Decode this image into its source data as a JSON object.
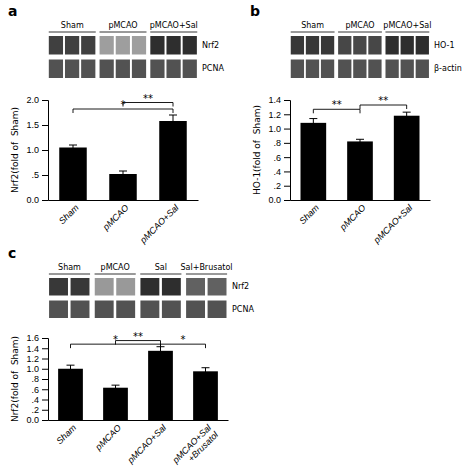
{
  "chart_data": [
    {
      "type": "bar",
      "title": "a",
      "categories": [
        "Sham",
        "pMCAO",
        "pMCAO+Sal"
      ],
      "values": [
        1.05,
        0.52,
        1.58
      ],
      "errors": [
        0.05,
        0.06,
        0.12
      ],
      "color": "#000000",
      "ylabel": "Nrf2(fold of  Sham)",
      "ylim": [
        0,
        2.0
      ],
      "yticks": [
        {
          "value": 0.0,
          "label": "0.0"
        },
        {
          "value": 0.5,
          "label": ".5"
        },
        {
          "value": 1.0,
          "label": "1.0"
        },
        {
          "value": 1.5,
          "label": "1.5"
        },
        {
          "value": 2.0,
          "label": "2.0"
        }
      ],
      "annotations": [
        {
          "x1": 0,
          "x2": 2,
          "y": 1.82,
          "label": "*"
        },
        {
          "x1": 1,
          "x2": 2,
          "y": 1.95,
          "label": "**"
        }
      ],
      "blot": {
        "groups": [
          "Sham",
          "pMCAO",
          "pMCAO+Sal"
        ],
        "lanes": [
          3,
          3,
          3
        ],
        "rows": [
          {
            "label": "Nrf2",
            "values": [
              0.75,
              0.75,
              0.75,
              0.38,
              0.38,
              0.38,
              0.82,
              0.82,
              0.82
            ]
          },
          {
            "label": "PCNA",
            "values": [
              0.68,
              0.68,
              0.68,
              0.68,
              0.68,
              0.68,
              0.68,
              0.68,
              0.68
            ]
          }
        ]
      }
    },
    {
      "type": "bar",
      "title": "b",
      "categories": [
        "Sham",
        "pMCAO",
        "pMCAO+Sal"
      ],
      "values": [
        1.08,
        0.82,
        1.18
      ],
      "errors": [
        0.06,
        0.03,
        0.05
      ],
      "color": "#000000",
      "ylabel": "HO-1(fold of  Sham)",
      "ylim": [
        0,
        1.4
      ],
      "yticks": [
        {
          "value": 0.0,
          "label": "0.0"
        },
        {
          "value": 0.2,
          "label": ".2"
        },
        {
          "value": 0.4,
          "label": ".4"
        },
        {
          "value": 0.6,
          "label": ".6"
        },
        {
          "value": 0.8,
          "label": ".8"
        },
        {
          "value": 1.0,
          "label": "1.0"
        },
        {
          "value": 1.2,
          "label": "1.2"
        },
        {
          "value": 1.4,
          "label": "1.4"
        }
      ],
      "annotations": [
        {
          "x1": 0,
          "x2": 1,
          "y": 1.27,
          "label": "**"
        },
        {
          "x1": 1,
          "x2": 2,
          "y": 1.33,
          "label": "**"
        }
      ],
      "blot": {
        "groups": [
          "Sham",
          "pMCAO",
          "pMCAO+Sal"
        ],
        "lanes": [
          3,
          3,
          3
        ],
        "rows": [
          {
            "label": "HO-1",
            "values": [
              0.78,
              0.78,
              0.78,
              0.72,
              0.72,
              0.72,
              0.82,
              0.82,
              0.82
            ]
          },
          {
            "label": "β-actin",
            "values": [
              0.68,
              0.68,
              0.68,
              0.68,
              0.68,
              0.68,
              0.68,
              0.68,
              0.68
            ]
          }
        ]
      }
    },
    {
      "type": "bar",
      "title": "c",
      "categories": [
        "Sham",
        "pMCAO",
        "pMCAO+Sal",
        "pMCAO+Sal\n+Brusatol"
      ],
      "values": [
        1.0,
        0.63,
        1.35,
        0.95
      ],
      "errors": [
        0.07,
        0.05,
        0.08,
        0.07
      ],
      "color": "#000000",
      "ylabel": "Nrf2(fold of  Sham)",
      "ylim": [
        0,
        1.6
      ],
      "yticks": [
        {
          "value": 0.0,
          "label": "0.0"
        },
        {
          "value": 0.2,
          "label": ".2"
        },
        {
          "value": 0.4,
          "label": ".4"
        },
        {
          "value": 0.6,
          "label": ".6"
        },
        {
          "value": 0.8,
          "label": ".8"
        },
        {
          "value": 1.0,
          "label": "1.0"
        },
        {
          "value": 1.2,
          "label": "1.2"
        },
        {
          "value": 1.4,
          "label": "1.4"
        },
        {
          "value": 1.6,
          "label": "1.6"
        }
      ],
      "annotations": [
        {
          "x1": 0,
          "x2": 2,
          "y": 1.48,
          "label": "*"
        },
        {
          "x1": 1,
          "x2": 2,
          "y": 1.55,
          "label": "**"
        },
        {
          "x1": 2,
          "x2": 3,
          "y": 1.48,
          "label": "*"
        }
      ],
      "blot": {
        "groups": [
          "Sham",
          "pMCAO",
          "Sal",
          "Sal+Brusatol"
        ],
        "lanes": [
          2,
          2,
          2,
          2
        ],
        "rows": [
          {
            "label": "Nrf2",
            "values": [
              0.78,
              0.78,
              0.4,
              0.4,
              0.82,
              0.82,
              0.62,
              0.62
            ]
          },
          {
            "label": "PCNA",
            "values": [
              0.68,
              0.68,
              0.68,
              0.68,
              0.68,
              0.68,
              0.68,
              0.68
            ]
          }
        ]
      }
    }
  ]
}
